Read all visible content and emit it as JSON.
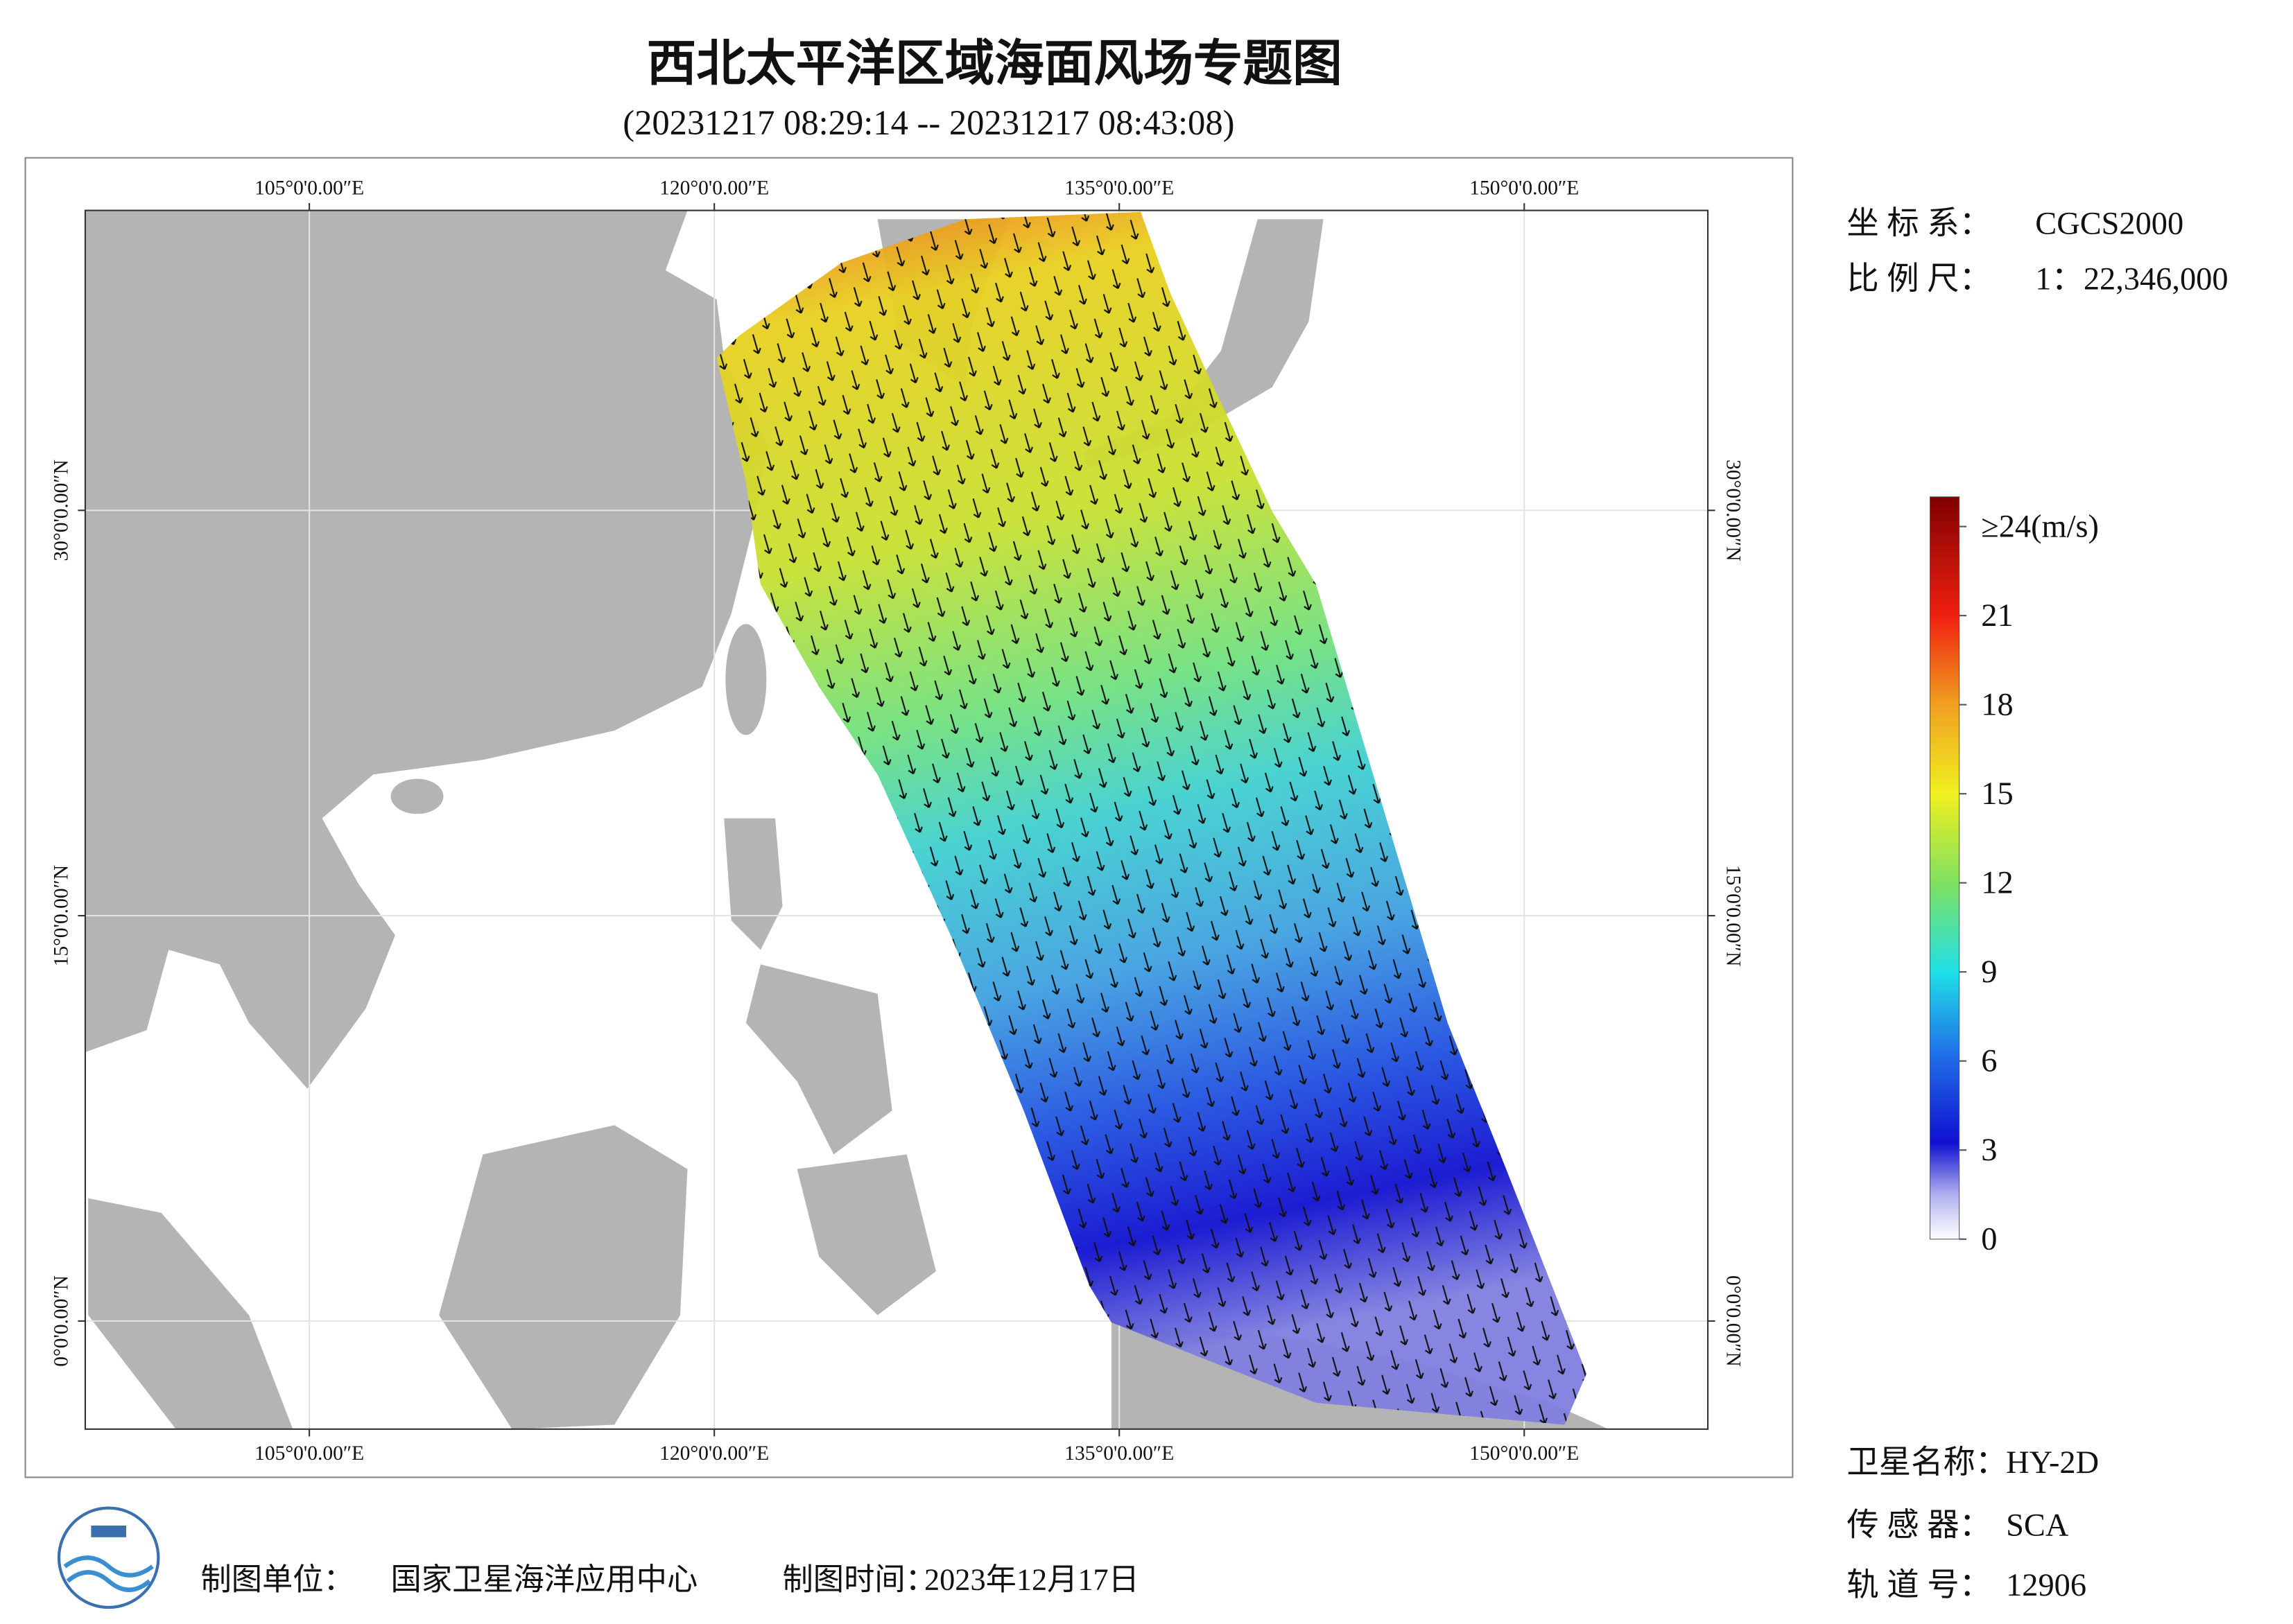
{
  "header": {
    "title": "西北太平洋区域海面风场专题图",
    "subtitle": "(20231217 08:29:14 -- 20231217 08:43:08)"
  },
  "map": {
    "lonlim": [
      96.7,
      156.8
    ],
    "latlim": [
      -4,
      41.1
    ],
    "lon_ticks": [
      {
        "value": 105,
        "label": "105°0'0.00″E"
      },
      {
        "value": 120,
        "label": "120°0'0.00″E"
      },
      {
        "value": 135,
        "label": "135°0'0.00″E"
      },
      {
        "value": 150,
        "label": "150°0'0.00″E"
      }
    ],
    "lat_ticks": [
      {
        "value": 0,
        "label": "0°0'0.00″N"
      },
      {
        "value": 15,
        "label": "15°0'0.00″N"
      },
      {
        "value": 30,
        "label": "30°0'0.00″N"
      }
    ]
  },
  "colorbar": {
    "lim": [
      0,
      25
    ],
    "ticks": [
      0,
      3,
      6,
      9,
      12,
      15,
      18,
      21,
      {
        "value": 24,
        "label": "≥24(m/s)"
      }
    ]
  },
  "info": [
    {
      "label": "坐 标 系：",
      "value": "CGCS2000"
    },
    {
      "label": "比 例 尺：",
      "value": "1：22,346,000"
    }
  ],
  "satellite": [
    {
      "label": "卫星名称：",
      "value": "HY-2D"
    },
    {
      "label": "传 感 器：",
      "value": "SCA"
    },
    {
      "label": "轨 道 号：",
      "value": "12906"
    }
  ],
  "footer": {
    "unit_label": "制图单位：",
    "unit": "国家卫星海洋应用中心",
    "time_label": "制图时间：",
    "time": "2023年12月17日"
  }
}
